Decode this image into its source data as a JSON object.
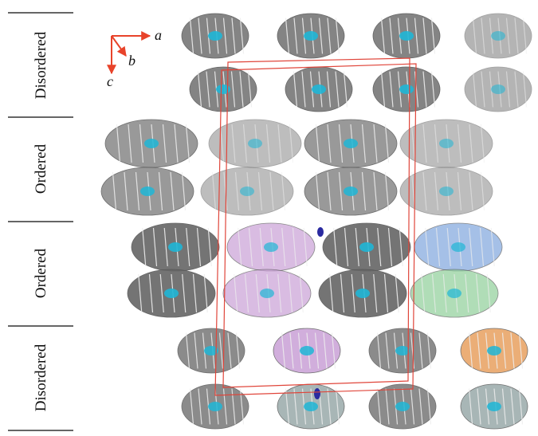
{
  "row_labels": [
    "Disordered",
    "Ordered",
    "Ordered",
    "Disordered"
  ],
  "axes": {
    "a": "a",
    "b": "b",
    "c": "c"
  }
}
